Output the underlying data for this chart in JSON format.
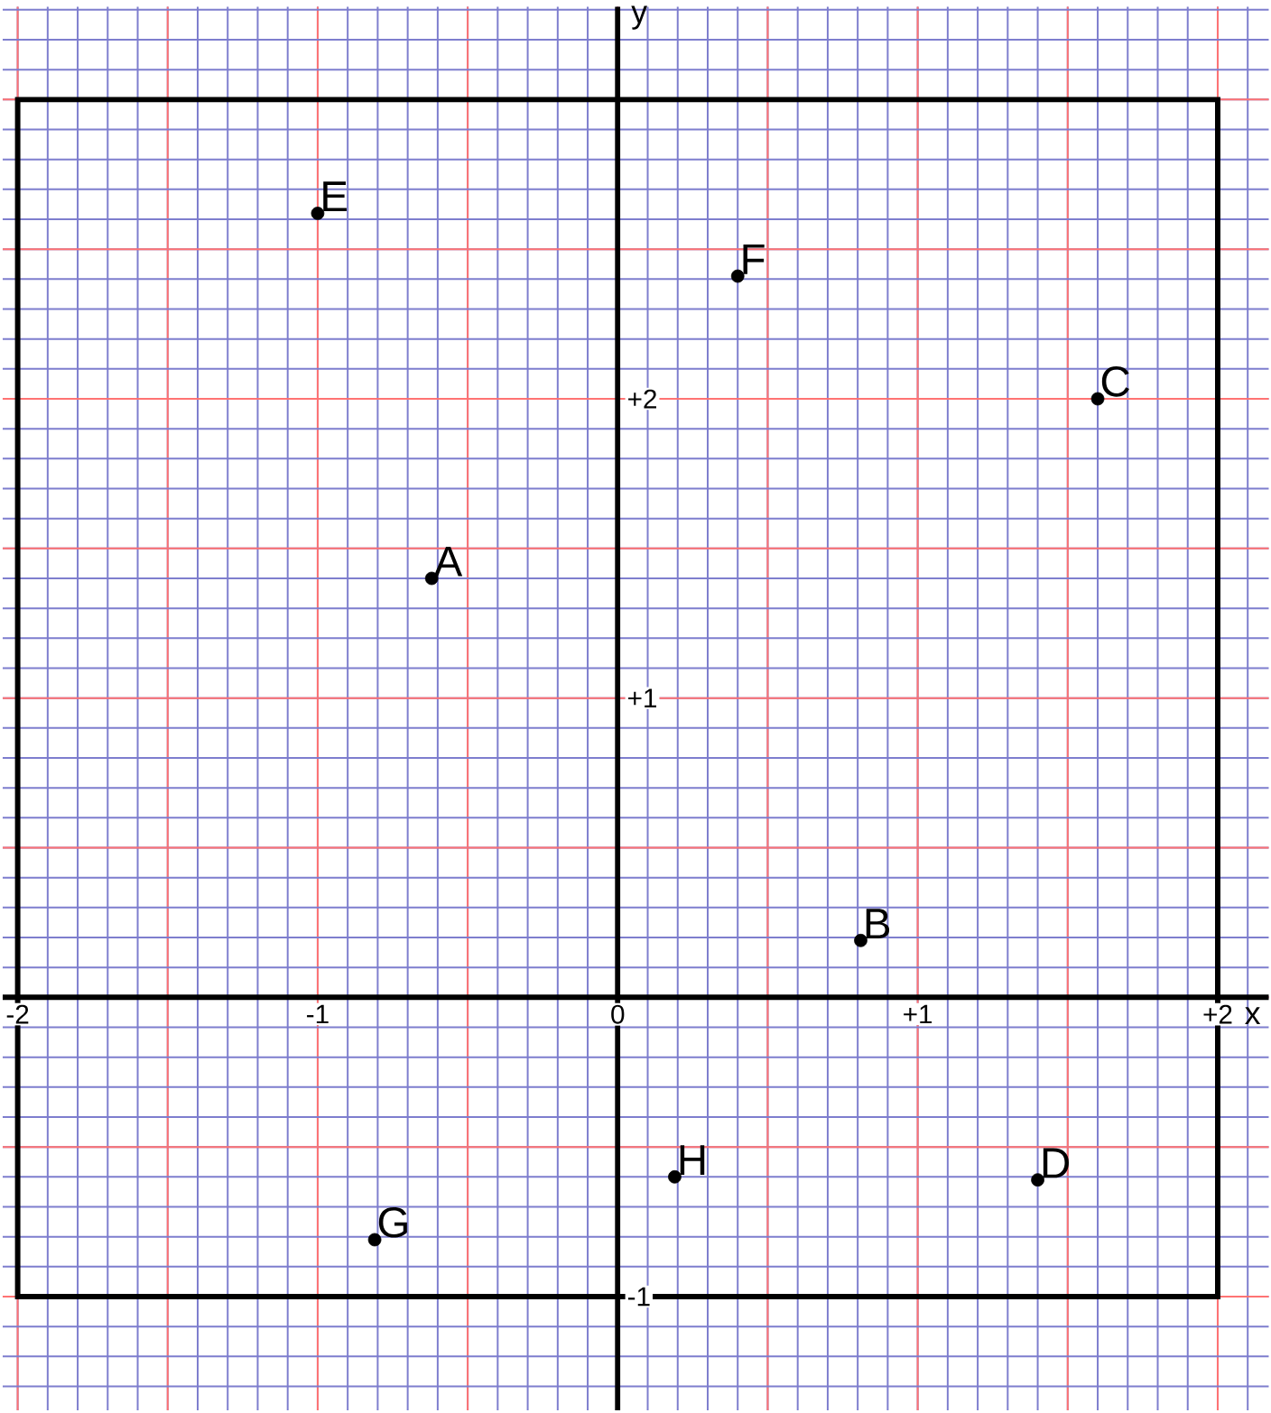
{
  "chart_data": {
    "type": "scatter",
    "xlabel": "x",
    "ylabel": "y",
    "xlim": [
      -2.05,
      2.17
    ],
    "ylim": [
      -1.38,
      3.31
    ],
    "xticks": [
      {
        "value": -2,
        "label": "-2"
      },
      {
        "value": -1.5,
        "label": null
      },
      {
        "value": -1,
        "label": "-1"
      },
      {
        "value": -0.5,
        "label": null
      },
      {
        "value": 0,
        "label": "0"
      },
      {
        "value": 0.5,
        "label": null
      },
      {
        "value": 1,
        "label": "+1"
      },
      {
        "value": 1.5,
        "label": null
      },
      {
        "value": 2,
        "label": "+2"
      }
    ],
    "yticks": [
      {
        "value": -1,
        "label": "-1"
      },
      {
        "value": -0.5,
        "label": null
      },
      {
        "value": 0,
        "label": null
      },
      {
        "value": 0.5,
        "label": null
      },
      {
        "value": 1,
        "label": "+1"
      },
      {
        "value": 1.5,
        "label": null
      },
      {
        "value": 2,
        "label": "+2"
      },
      {
        "value": 2.5,
        "label": null
      },
      {
        "value": 3,
        "label": null
      }
    ],
    "grid": true,
    "series": [
      {
        "color": "#000000",
        "x": [
          -1.0,
          0.4,
          1.6,
          -0.62,
          0.81,
          0.19,
          1.4,
          -0.81
        ],
        "values": [
          2.62,
          2.41,
          2.0,
          1.4,
          0.19,
          -0.6,
          -0.61,
          -0.81
        ]
      }
    ],
    "annotations": [
      {
        "text": "E",
        "x": -1.0,
        "y": 2.62
      },
      {
        "text": "F",
        "x": 0.4,
        "y": 2.41
      },
      {
        "text": "C",
        "x": 1.6,
        "y": 2.0
      },
      {
        "text": "A",
        "x": -0.62,
        "y": 1.4
      },
      {
        "text": "B",
        "x": 0.81,
        "y": 0.19
      },
      {
        "text": "H",
        "x": 0.19,
        "y": -0.6
      },
      {
        "text": "D",
        "x": 1.4,
        "y": -0.61
      },
      {
        "text": "G",
        "x": -0.81,
        "y": -0.81
      }
    ]
  }
}
